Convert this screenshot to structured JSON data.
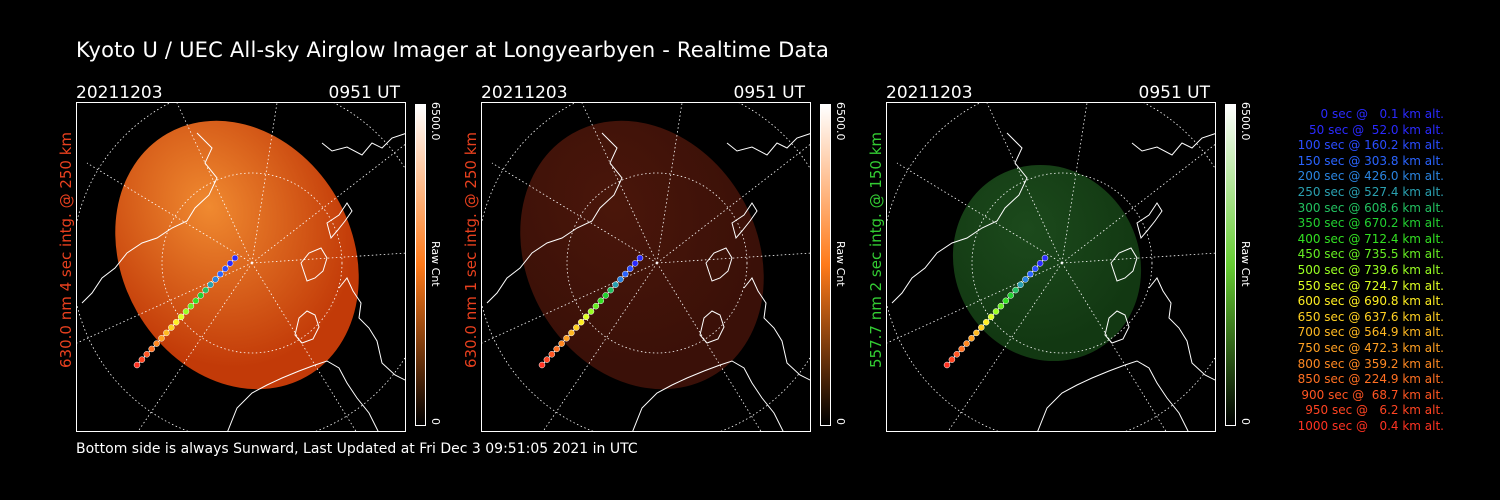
{
  "title": "Kyoto U / UEC All-sky Airglow Imager at Longyearbyen - Realtime Data",
  "footer": "Bottom side is always Sunward, Last Updated at Fri Dec  3 09:51:05 2021 in UTC",
  "panels": [
    {
      "date": "20211203",
      "time": "0951 UT",
      "label": "630.0 nm 4 sec intg. @ 250 km",
      "label_color": "#e8401e",
      "colorbar_max": "6500.0",
      "colorbar_unit": "Raw Cnt",
      "colorbar_min": "0",
      "image_color": "#c23a08",
      "image_glow": "#f08a30",
      "colorbar_gradient": [
        "#ffffff",
        "#ff7a1a",
        "#000000"
      ]
    },
    {
      "date": "20211203",
      "time": "0951 UT",
      "label": "630.0 nm 1 sec intg. @ 250 km",
      "label_color": "#e8401e",
      "colorbar_max": "6500.0",
      "colorbar_unit": "Raw Cnt",
      "colorbar_min": "0",
      "image_color": "#3a1008",
      "image_glow": "#4a160a",
      "colorbar_gradient": [
        "#ffffff",
        "#ff7a1a",
        "#000000"
      ]
    },
    {
      "date": "20211203",
      "time": "0951 UT",
      "label": "557.7 nm 2 sec intg. @ 150 km",
      "label_color": "#33cc33",
      "colorbar_max": "6500.0",
      "colorbar_unit": "Raw Cnt",
      "colorbar_min": "0",
      "image_color": "#123812",
      "image_glow": "#1c4a1c",
      "colorbar_gradient": [
        "#ffffff",
        "#66cc33",
        "#000000"
      ]
    }
  ],
  "altitude_legend": [
    {
      "text": "0 sec @   0.1 km alt.",
      "color": "#2a2aff"
    },
    {
      "text": "50 sec @  52.0 km alt.",
      "color": "#2a2aff"
    },
    {
      "text": "100 sec @ 160.2 km alt.",
      "color": "#2a4cff"
    },
    {
      "text": "150 sec @ 303.8 km alt.",
      "color": "#2a64ff"
    },
    {
      "text": "200 sec @ 426.0 km alt.",
      "color": "#2a84e0"
    },
    {
      "text": "250 sec @ 527.4 km alt.",
      "color": "#2aa0b0"
    },
    {
      "text": "300 sec @ 608.6 km alt.",
      "color": "#22c060"
    },
    {
      "text": "350 sec @ 670.2 km alt.",
      "color": "#22d030"
    },
    {
      "text": "400 sec @ 712.4 km alt.",
      "color": "#33e022"
    },
    {
      "text": "450 sec @ 735.5 km alt.",
      "color": "#66ee22"
    },
    {
      "text": "500 sec @ 739.6 km alt.",
      "color": "#99ff22"
    },
    {
      "text": "550 sec @ 724.7 km alt.",
      "color": "#ddff22"
    },
    {
      "text": "600 sec @ 690.8 km alt.",
      "color": "#ffee22"
    },
    {
      "text": "650 sec @ 637.6 km alt.",
      "color": "#ffd022"
    },
    {
      "text": "700 sec @ 564.9 km alt.",
      "color": "#ffb822"
    },
    {
      "text": "750 sec @ 472.3 km alt.",
      "color": "#ffa022"
    },
    {
      "text": "800 sec @ 359.2 km alt.",
      "color": "#ff8822"
    },
    {
      "text": "850 sec @ 224.9 km alt.",
      "color": "#ff7022"
    },
    {
      "text": "900 sec @  68.7 km alt.",
      "color": "#ff5522"
    },
    {
      "text": "950 sec @   6.2 km alt.",
      "color": "#ff4422"
    },
    {
      "text": "1000 sec @   0.4 km alt.",
      "color": "#ff3322"
    }
  ]
}
